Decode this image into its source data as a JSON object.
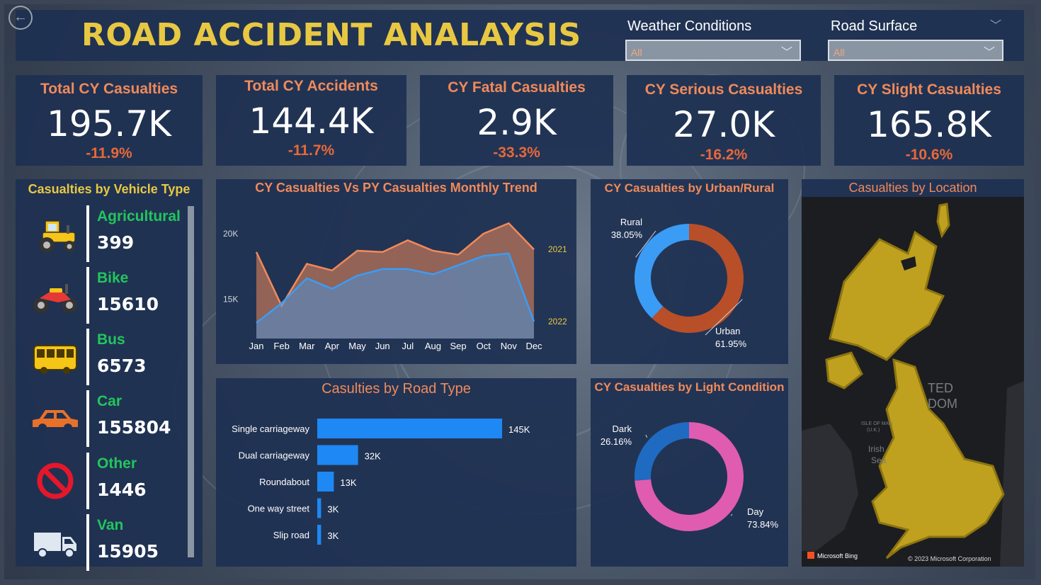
{
  "header": {
    "title": "ROAD ACCIDENT ANALAYSIS",
    "filters": [
      {
        "label": "Weather Conditions",
        "value": "All"
      },
      {
        "label": "Road Surface",
        "value": "All"
      }
    ]
  },
  "kpis": [
    {
      "title": "Total CY Casualties",
      "value": "195.7K",
      "delta": "-11.9%"
    },
    {
      "title": "Total CY Accidents",
      "value": "144.4K",
      "delta": "-11.7%"
    },
    {
      "title": "CY Fatal Casualties",
      "value": "2.9K",
      "delta": "-33.3%"
    },
    {
      "title": "CY Serious Casualties",
      "value": "27.0K",
      "delta": "-16.2%"
    },
    {
      "title": "CY Slight Casualties",
      "value": "165.8K",
      "delta": "-10.6%"
    }
  ],
  "vehicles": {
    "title": "Casualties by Vehicle Type",
    "items": [
      {
        "label": "Agricultural",
        "value": "399",
        "icon": "tractor-icon"
      },
      {
        "label": "Bike",
        "value": "15610",
        "icon": "motorbike-icon"
      },
      {
        "label": "Bus",
        "value": "6573",
        "icon": "bus-icon"
      },
      {
        "label": "Car",
        "value": "155804",
        "icon": "car-icon"
      },
      {
        "label": "Other",
        "value": "1446",
        "icon": "prohibited-icon"
      },
      {
        "label": "Van",
        "value": "15905",
        "icon": "van-icon"
      }
    ]
  },
  "map": {
    "title": "Casualties by Location",
    "labels": [
      "TED",
      "DOM",
      "Irish",
      "Sea",
      "ISLE OF MAN",
      "(U.K.)"
    ],
    "bing": "Microsoft Bing",
    "copyright": "© 2023 Microsoft Corporation"
  },
  "chart_data": [
    {
      "type": "area",
      "title": "CY Casualties Vs PY Casualties Monthly Trend",
      "categories": [
        "Jan",
        "Feb",
        "Mar",
        "Apr",
        "May",
        "Jun",
        "Jul",
        "Aug",
        "Sep",
        "Oct",
        "Nov",
        "Dec"
      ],
      "series": [
        {
          "name": "2021",
          "values": [
            18600,
            14500,
            17700,
            17200,
            18700,
            18600,
            19500,
            18700,
            18400,
            20000,
            20800,
            18800
          ],
          "color": "#f08a5a"
        },
        {
          "name": "2022",
          "values": [
            13200,
            14700,
            16600,
            15800,
            16800,
            17300,
            17300,
            16900,
            17600,
            18300,
            18500,
            13300
          ],
          "color": "#3b9cf5"
        }
      ],
      "yticks": [
        "15K",
        "20K"
      ],
      "ylim": [
        12000,
        22000
      ]
    },
    {
      "type": "pie",
      "title": "CY Casualties by Urban/Rural",
      "slices": [
        {
          "label": "Urban",
          "value": 61.95,
          "display": "61.95%",
          "color": "#b84f28"
        },
        {
          "label": "Rural",
          "value": 38.05,
          "display": "38.05%",
          "color": "#3b9cf5"
        }
      ]
    },
    {
      "type": "bar",
      "title": "Casulties by Road Type",
      "categories": [
        "Single carriageway",
        "Dual carriageway",
        "Roundabout",
        "One way street",
        "Slip road"
      ],
      "values": [
        145,
        32,
        13,
        3,
        3
      ],
      "labels": [
        "145K",
        "32K",
        "13K",
        "3K",
        "3K"
      ],
      "unit": "K",
      "color": "#1e88f5"
    },
    {
      "type": "pie",
      "title": "CY Casualties by Light Condition",
      "slices": [
        {
          "label": "Day",
          "value": 73.84,
          "display": "73.84%",
          "color": "#e05cb0"
        },
        {
          "label": "Dark",
          "value": 26.16,
          "display": "26.16%",
          "color": "#1f6bc2"
        }
      ]
    }
  ]
}
